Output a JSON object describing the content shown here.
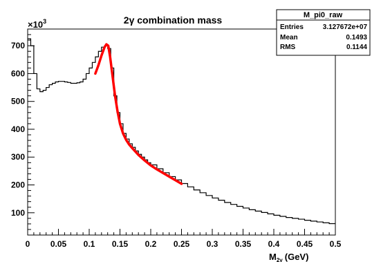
{
  "chart_data": {
    "type": "line",
    "title": "2γ combination mass",
    "xlabel": "M",
    "xlabel_subscript": "2γ",
    "xlabel_unit": "(GeV)",
    "y_exponent_label": "×10",
    "y_exponent_power": "3",
    "xlim": [
      0,
      0.5
    ],
    "ylim": [
      20,
      760
    ],
    "x_ticks": [
      0,
      0.05,
      0.1,
      0.15,
      0.2,
      0.25,
      0.3,
      0.35,
      0.4,
      0.45,
      0.5
    ],
    "x_tick_labels": [
      "0",
      "0.05",
      "0.1",
      "0.15",
      "0.2",
      "0.25",
      "0.3",
      "0.35",
      "0.4",
      "0.45",
      "0.5"
    ],
    "y_ticks": [
      100,
      200,
      300,
      400,
      500,
      600,
      700
    ],
    "y_tick_labels": [
      "100",
      "200",
      "300",
      "400",
      "500",
      "600",
      "700"
    ],
    "series": [
      {
        "style": "histogram",
        "color": "#000000",
        "x": [
          0,
          0.005,
          0.01,
          0.015,
          0.02,
          0.025,
          0.03,
          0.035,
          0.04,
          0.045,
          0.05,
          0.055,
          0.06,
          0.065,
          0.07,
          0.075,
          0.08,
          0.085,
          0.09,
          0.095,
          0.1,
          0.105,
          0.11,
          0.115,
          0.12,
          0.125,
          0.13,
          0.135,
          0.14,
          0.145,
          0.15,
          0.155,
          0.16,
          0.165,
          0.17,
          0.175,
          0.18,
          0.185,
          0.19,
          0.195,
          0.2,
          0.21,
          0.22,
          0.23,
          0.24,
          0.25,
          0.26,
          0.27,
          0.28,
          0.29,
          0.3,
          0.31,
          0.32,
          0.33,
          0.34,
          0.35,
          0.36,
          0.37,
          0.38,
          0.39,
          0.4,
          0.41,
          0.42,
          0.43,
          0.44,
          0.45,
          0.46,
          0.47,
          0.48,
          0.49
        ],
        "values": [
          725,
          700,
          600,
          545,
          535,
          540,
          550,
          560,
          565,
          570,
          572,
          572,
          570,
          568,
          565,
          565,
          567,
          570,
          580,
          600,
          620,
          640,
          660,
          680,
          695,
          700,
          690,
          620,
          520,
          460,
          420,
          385,
          365,
          348,
          335,
          322,
          310,
          300,
          290,
          280,
          272,
          258,
          244,
          230,
          218,
          205,
          193,
          182,
          172,
          162,
          153,
          145,
          137,
          130,
          123,
          117,
          111,
          106,
          101,
          96,
          91,
          87,
          83,
          80,
          77,
          73,
          70,
          67,
          64,
          61
        ]
      },
      {
        "style": "fit",
        "color": "#ff0000",
        "x": [
          0.11,
          0.115,
          0.12,
          0.125,
          0.128,
          0.131,
          0.134,
          0.138,
          0.142,
          0.146,
          0.15,
          0.155,
          0.16,
          0.165,
          0.17,
          0.175,
          0.18,
          0.185,
          0.19,
          0.195,
          0.2,
          0.21,
          0.22,
          0.23,
          0.24,
          0.25
        ],
        "values": [
          600,
          630,
          665,
          695,
          705,
          700,
          660,
          590,
          520,
          465,
          420,
          385,
          362,
          345,
          332,
          320,
          308,
          298,
          288,
          279,
          270,
          256,
          243,
          230,
          217,
          204
        ]
      }
    ],
    "stats_box": {
      "title": "M_pi0_raw",
      "rows": [
        {
          "label": "Entries",
          "value": "3.127672e+07"
        },
        {
          "label": "Mean",
          "value": "0.1493"
        },
        {
          "label": "RMS",
          "value": "0.1144"
        }
      ]
    }
  }
}
